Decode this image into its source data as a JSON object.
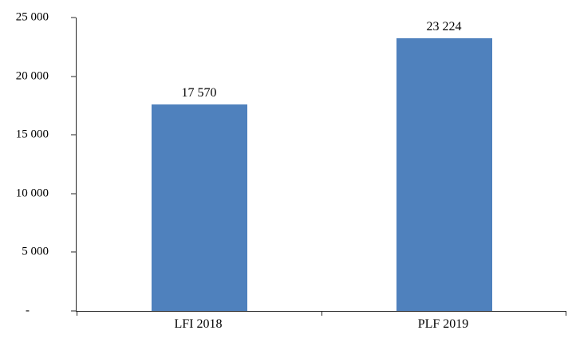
{
  "chart_data": {
    "type": "bar",
    "title": "",
    "xlabel": "",
    "ylabel": "",
    "categories": [
      "LFI 2018",
      "PLF 2019"
    ],
    "values": [
      17570,
      23224
    ],
    "value_labels": [
      "17 570",
      "23 224"
    ],
    "yticks": [
      "25 000",
      "20 000",
      "15 000",
      "10 000",
      "5 000",
      "-"
    ],
    "ylim": [
      0,
      25000
    ],
    "grid": false,
    "legend": false,
    "bar_color": "#4F81BD",
    "axis_color": "#262626"
  }
}
